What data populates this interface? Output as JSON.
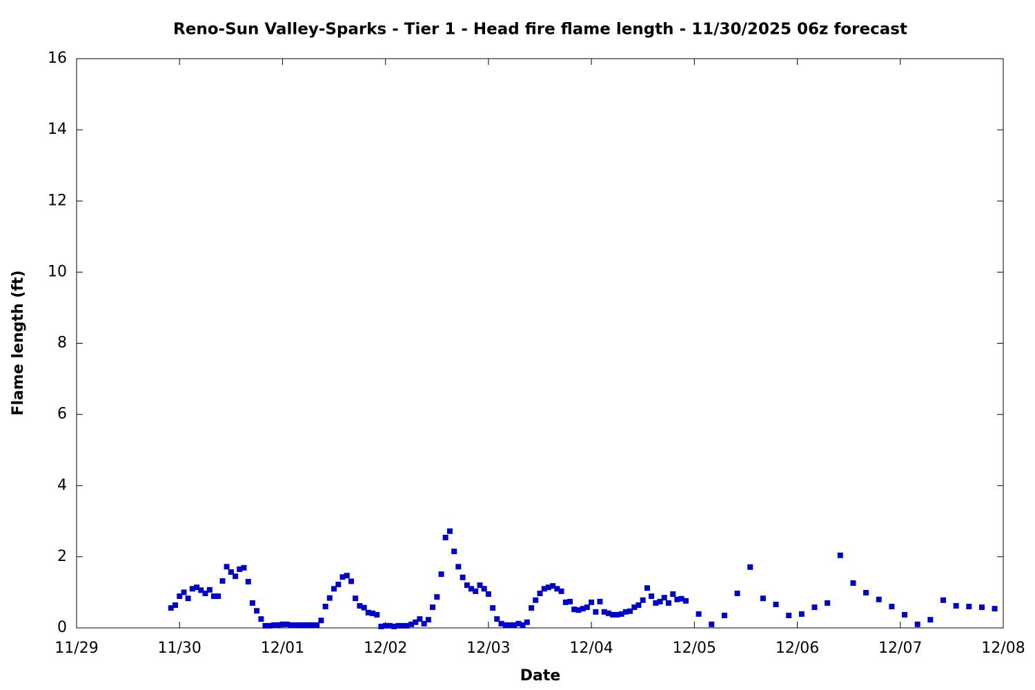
{
  "chart_data": {
    "type": "scatter",
    "title": "Reno-Sun Valley-Sparks - Tier 1 - Head fire flame length - 11/30/2025 06z forecast",
    "x_label": "Date",
    "y_label": "Flame length (ft)",
    "color": "#0000cc",
    "xlim": [
      0,
      9
    ],
    "xticks": [
      {
        "value": 0,
        "label": "11/29"
      },
      {
        "value": 1,
        "label": "11/30"
      },
      {
        "value": 2,
        "label": "12/01"
      },
      {
        "value": 3,
        "label": "12/02"
      },
      {
        "value": 4,
        "label": "12/03"
      },
      {
        "value": 5,
        "label": "12/04"
      },
      {
        "value": 6,
        "label": "12/05"
      },
      {
        "value": 7,
        "label": "12/06"
      },
      {
        "value": 8,
        "label": "12/07"
      },
      {
        "value": 9,
        "label": "12/08"
      }
    ],
    "ylim": [
      0,
      16
    ],
    "yticks": [
      0,
      2,
      4,
      6,
      8,
      10,
      12,
      14,
      16
    ],
    "x": [
      0.917,
      0.958,
      1,
      1.042,
      1.083,
      1.125,
      1.167,
      1.208,
      1.25,
      1.292,
      1.333,
      1.375,
      1.417,
      1.458,
      1.5,
      1.542,
      1.583,
      1.625,
      1.667,
      1.708,
      1.75,
      1.792,
      1.833,
      1.875,
      1.917,
      1.958,
      2,
      2.042,
      2.083,
      2.125,
      2.167,
      2.208,
      2.25,
      2.292,
      2.333,
      2.375,
      2.417,
      2.458,
      2.5,
      2.542,
      2.583,
      2.625,
      2.667,
      2.708,
      2.75,
      2.792,
      2.833,
      2.875,
      2.917,
      2.958,
      3,
      3.042,
      3.083,
      3.125,
      3.167,
      3.208,
      3.25,
      3.292,
      3.333,
      3.375,
      3.417,
      3.458,
      3.5,
      3.542,
      3.583,
      3.625,
      3.667,
      3.708,
      3.75,
      3.792,
      3.833,
      3.875,
      3.917,
      3.958,
      4,
      4.042,
      4.083,
      4.125,
      4.167,
      4.208,
      4.25,
      4.292,
      4.333,
      4.375,
      4.417,
      4.458,
      4.5,
      4.542,
      4.583,
      4.625,
      4.667,
      4.708,
      4.75,
      4.792,
      4.833,
      4.875,
      4.917,
      4.958,
      5,
      5.042,
      5.083,
      5.125,
      5.167,
      5.208,
      5.25,
      5.292,
      5.333,
      5.375,
      5.417,
      5.458,
      5.5,
      5.542,
      5.583,
      5.625,
      5.667,
      5.708,
      5.75,
      5.792,
      5.833,
      5.875,
      5.917,
      6.042,
      6.167,
      6.292,
      6.417,
      6.542,
      6.667,
      6.792,
      6.917,
      7.042,
      7.167,
      7.292,
      7.417,
      7.542,
      7.667,
      7.792,
      7.917,
      8.042,
      8.167,
      8.292,
      8.417,
      8.542,
      8.667,
      8.792,
      8.917
    ],
    "values": [
      0.56,
      0.64,
      0.89,
      1.0,
      0.83,
      1.1,
      1.14,
      1.06,
      0.97,
      1.07,
      0.89,
      0.89,
      1.32,
      1.72,
      1.57,
      1.45,
      1.65,
      1.69,
      1.3,
      0.7,
      0.48,
      0.25,
      0.06,
      0.06,
      0.08,
      0.08,
      0.1,
      0.1,
      0.08,
      0.08,
      0.08,
      0.08,
      0.08,
      0.08,
      0.08,
      0.21,
      0.6,
      0.84,
      1.1,
      1.22,
      1.43,
      1.47,
      1.31,
      0.83,
      0.62,
      0.57,
      0.43,
      0.41,
      0.37,
      0.04,
      0.06,
      0.06,
      0.04,
      0.06,
      0.06,
      0.06,
      0.1,
      0.16,
      0.25,
      0.12,
      0.23,
      0.58,
      0.87,
      1.51,
      2.54,
      2.72,
      2.15,
      1.72,
      1.42,
      1.2,
      1.1,
      1.03,
      1.2,
      1.1,
      0.95,
      0.56,
      0.25,
      0.12,
      0.08,
      0.08,
      0.08,
      0.12,
      0.08,
      0.16,
      0.56,
      0.78,
      0.97,
      1.1,
      1.14,
      1.18,
      1.1,
      1.03,
      0.72,
      0.74,
      0.52,
      0.5,
      0.54,
      0.58,
      0.72,
      0.45,
      0.74,
      0.45,
      0.41,
      0.37,
      0.37,
      0.39,
      0.45,
      0.47,
      0.58,
      0.64,
      0.78,
      1.12,
      0.89,
      0.7,
      0.74,
      0.85,
      0.7,
      0.95,
      0.8,
      0.82,
      0.76,
      0.39,
      0.1,
      0.35,
      0.97,
      1.71,
      0.83,
      0.66,
      0.35,
      0.39,
      0.58,
      0.7,
      2.04,
      1.26,
      0.99,
      0.8,
      0.6,
      0.37,
      0.1,
      0.23,
      0.78,
      0.62,
      0.6,
      0.58,
      0.54
    ]
  }
}
